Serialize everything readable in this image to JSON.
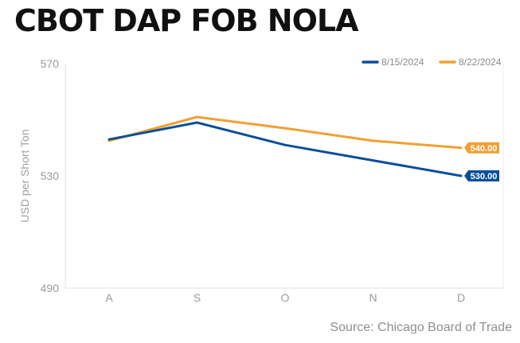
{
  "title": "CBOT DAP FOB NOLA",
  "source": "Source: Chicago Board of Trade",
  "chart_data": {
    "type": "line",
    "title": "CBOT DAP FOB NOLA",
    "ylabel": "USD per Short Ton",
    "xlabel": "",
    "categories": [
      "A",
      "S",
      "O",
      "N",
      "D"
    ],
    "ylim": [
      490,
      570
    ],
    "yticks": [
      "490",
      "530",
      "570"
    ],
    "grid": false,
    "legend_position": "top-right",
    "series": [
      {
        "name": "8/15/2024",
        "color": "#0a4f9a",
        "values": [
          543,
          549,
          541,
          535.5,
          530
        ],
        "end_label": "530.00"
      },
      {
        "name": "8/22/2024",
        "color": "#f0a032",
        "values": [
          542.5,
          551,
          547,
          542.5,
          540
        ],
        "end_label": "540.00"
      }
    ]
  }
}
